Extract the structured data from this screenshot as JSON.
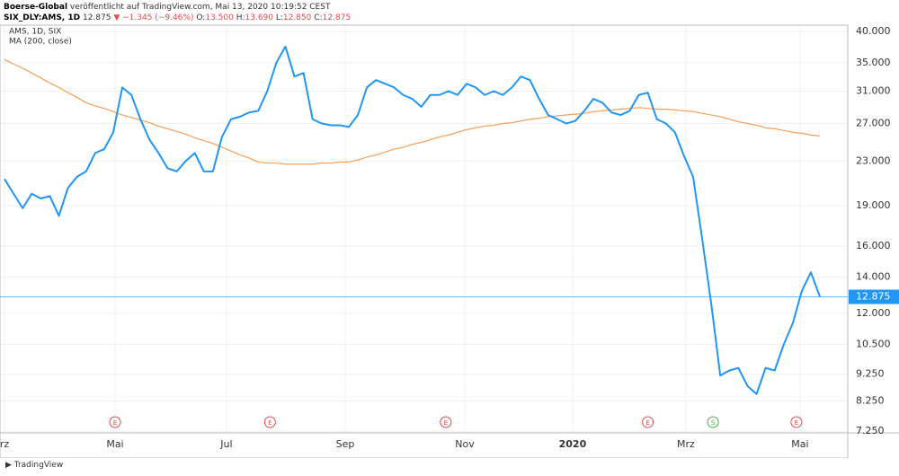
{
  "header": {
    "author": "Boerse-Global",
    "published": "veröffentlicht auf TradingView.com, Mai 13, 2020 10:19:52 CEST",
    "symbol": "SIX_DLY:AMS, 1D",
    "last": "12.875",
    "change": "▼ −1.345 (−9.46%)",
    "open_label": "O:",
    "open": "13.500",
    "high_label": "H:",
    "high": "13.690",
    "low_label": "L:",
    "low": "12.850",
    "close_label": "C:",
    "close": "12.875"
  },
  "chart_data": {
    "type": "line",
    "log_scale": true,
    "grid": true,
    "legend": [
      "AMS, 1D, SIX",
      "MA (200, close)"
    ],
    "xlim": [
      -0.5,
      93.07
    ],
    "ylim": [
      7.2,
      41.1
    ],
    "xticks": [
      {
        "value": 0,
        "label": "rz"
      },
      {
        "value": 12.2,
        "label": "Mai"
      },
      {
        "value": 24.5,
        "label": "Jul"
      },
      {
        "value": 37.6,
        "label": "Sep"
      },
      {
        "value": 50.8,
        "label": "Nov"
      },
      {
        "value": 62.7,
        "label": "2020"
      },
      {
        "value": 75.2,
        "label": "Mrz"
      },
      {
        "value": 87.8,
        "label": "Mai"
      }
    ],
    "yticks": [
      {
        "value": 40,
        "label": "40.000"
      },
      {
        "value": 35,
        "label": "35.000"
      },
      {
        "value": 31,
        "label": "31.000"
      },
      {
        "value": 27,
        "label": "27.000"
      },
      {
        "value": 23,
        "label": "23.000"
      },
      {
        "value": 19,
        "label": "19.000"
      },
      {
        "value": 16,
        "label": "16.000"
      },
      {
        "value": 14,
        "label": "14.000"
      },
      {
        "value": 12,
        "label": "12.000"
      },
      {
        "value": 10.5,
        "label": "10.500"
      },
      {
        "value": 9.25,
        "label": "9.250"
      },
      {
        "value": 8.25,
        "label": "8.250"
      },
      {
        "value": 7.25,
        "label": "7.250"
      }
    ],
    "last_price": 12.875,
    "last_price_color": "#2196f3",
    "events": [
      {
        "label": "E",
        "x": 12.2
      },
      {
        "label": "E",
        "x": 29.3
      },
      {
        "label": "E",
        "x": 48.7
      },
      {
        "label": "E",
        "x": 71
      },
      {
        "label": "S",
        "x": 78.2
      },
      {
        "label": "E",
        "x": 87.4
      }
    ],
    "series": [
      {
        "name": "AMS",
        "color": "#2196f3",
        "values": [
          21.3,
          20.0,
          18.8,
          20.0,
          19.6,
          19.8,
          18.2,
          20.5,
          21.5,
          22.0,
          23.8,
          24.2,
          26,
          31.5,
          30.5,
          27.5,
          25.2,
          23.8,
          22.3,
          22.0,
          23.0,
          23.8,
          22.0,
          22.0,
          25.5,
          27.5,
          27.8,
          28.3,
          28.5,
          31,
          35,
          37.5,
          33,
          33.5,
          27.5,
          27.0,
          26.8,
          26.8,
          26.6,
          28.0,
          31.5,
          32.5,
          32.0,
          31.5,
          30.5,
          30.0,
          29.0,
          30.5,
          30.5,
          31.0,
          30.5,
          32.0,
          31.5,
          30.5,
          31.0,
          30.5,
          31.5,
          33.0,
          32.5,
          30.0,
          28.0,
          27.5,
          27.0,
          27.3,
          28.5,
          30.0,
          29.5,
          28.3,
          28.0,
          28.5,
          30.5,
          30.8,
          27.5,
          27.0,
          26.0,
          23.5,
          21.5,
          16.5,
          12.5,
          9.2,
          9.4,
          9.5,
          8.8,
          8.5,
          9.5,
          9.4,
          10.5,
          11.5,
          13.2,
          14.3,
          12.875
        ]
      },
      {
        "name": "MA (200, close)",
        "color": "#f5a05a",
        "values": [
          35.5,
          34.8,
          34.2,
          33.5,
          32.8,
          32.1,
          31.5,
          30.8,
          30.2,
          29.5,
          29.1,
          28.8,
          28.4,
          28.0,
          27.7,
          27.4,
          27.1,
          26.7,
          26.4,
          26.1,
          25.8,
          25.4,
          25.1,
          24.8,
          24.4,
          24.0,
          23.6,
          23.3,
          22.9,
          22.8,
          22.8,
          22.7,
          22.7,
          22.7,
          22.7,
          22.8,
          22.8,
          22.9,
          22.9,
          23.1,
          23.4,
          23.6,
          23.9,
          24.2,
          24.4,
          24.7,
          24.9,
          25.2,
          25.5,
          25.7,
          26.0,
          26.3,
          26.5,
          26.7,
          26.8,
          27.0,
          27.1,
          27.3,
          27.5,
          27.6,
          27.8,
          27.9,
          28.0,
          28.1,
          28.2,
          28.4,
          28.5,
          28.6,
          28.7,
          28.8,
          28.9,
          28.8,
          28.7,
          28.7,
          28.6,
          28.5,
          28.4,
          28.2,
          28.0,
          27.8,
          27.5,
          27.2,
          27.0,
          26.8,
          26.5,
          26.4,
          26.2,
          26.0,
          25.9,
          25.7,
          25.6
        ]
      }
    ]
  },
  "footer": "TradingView"
}
